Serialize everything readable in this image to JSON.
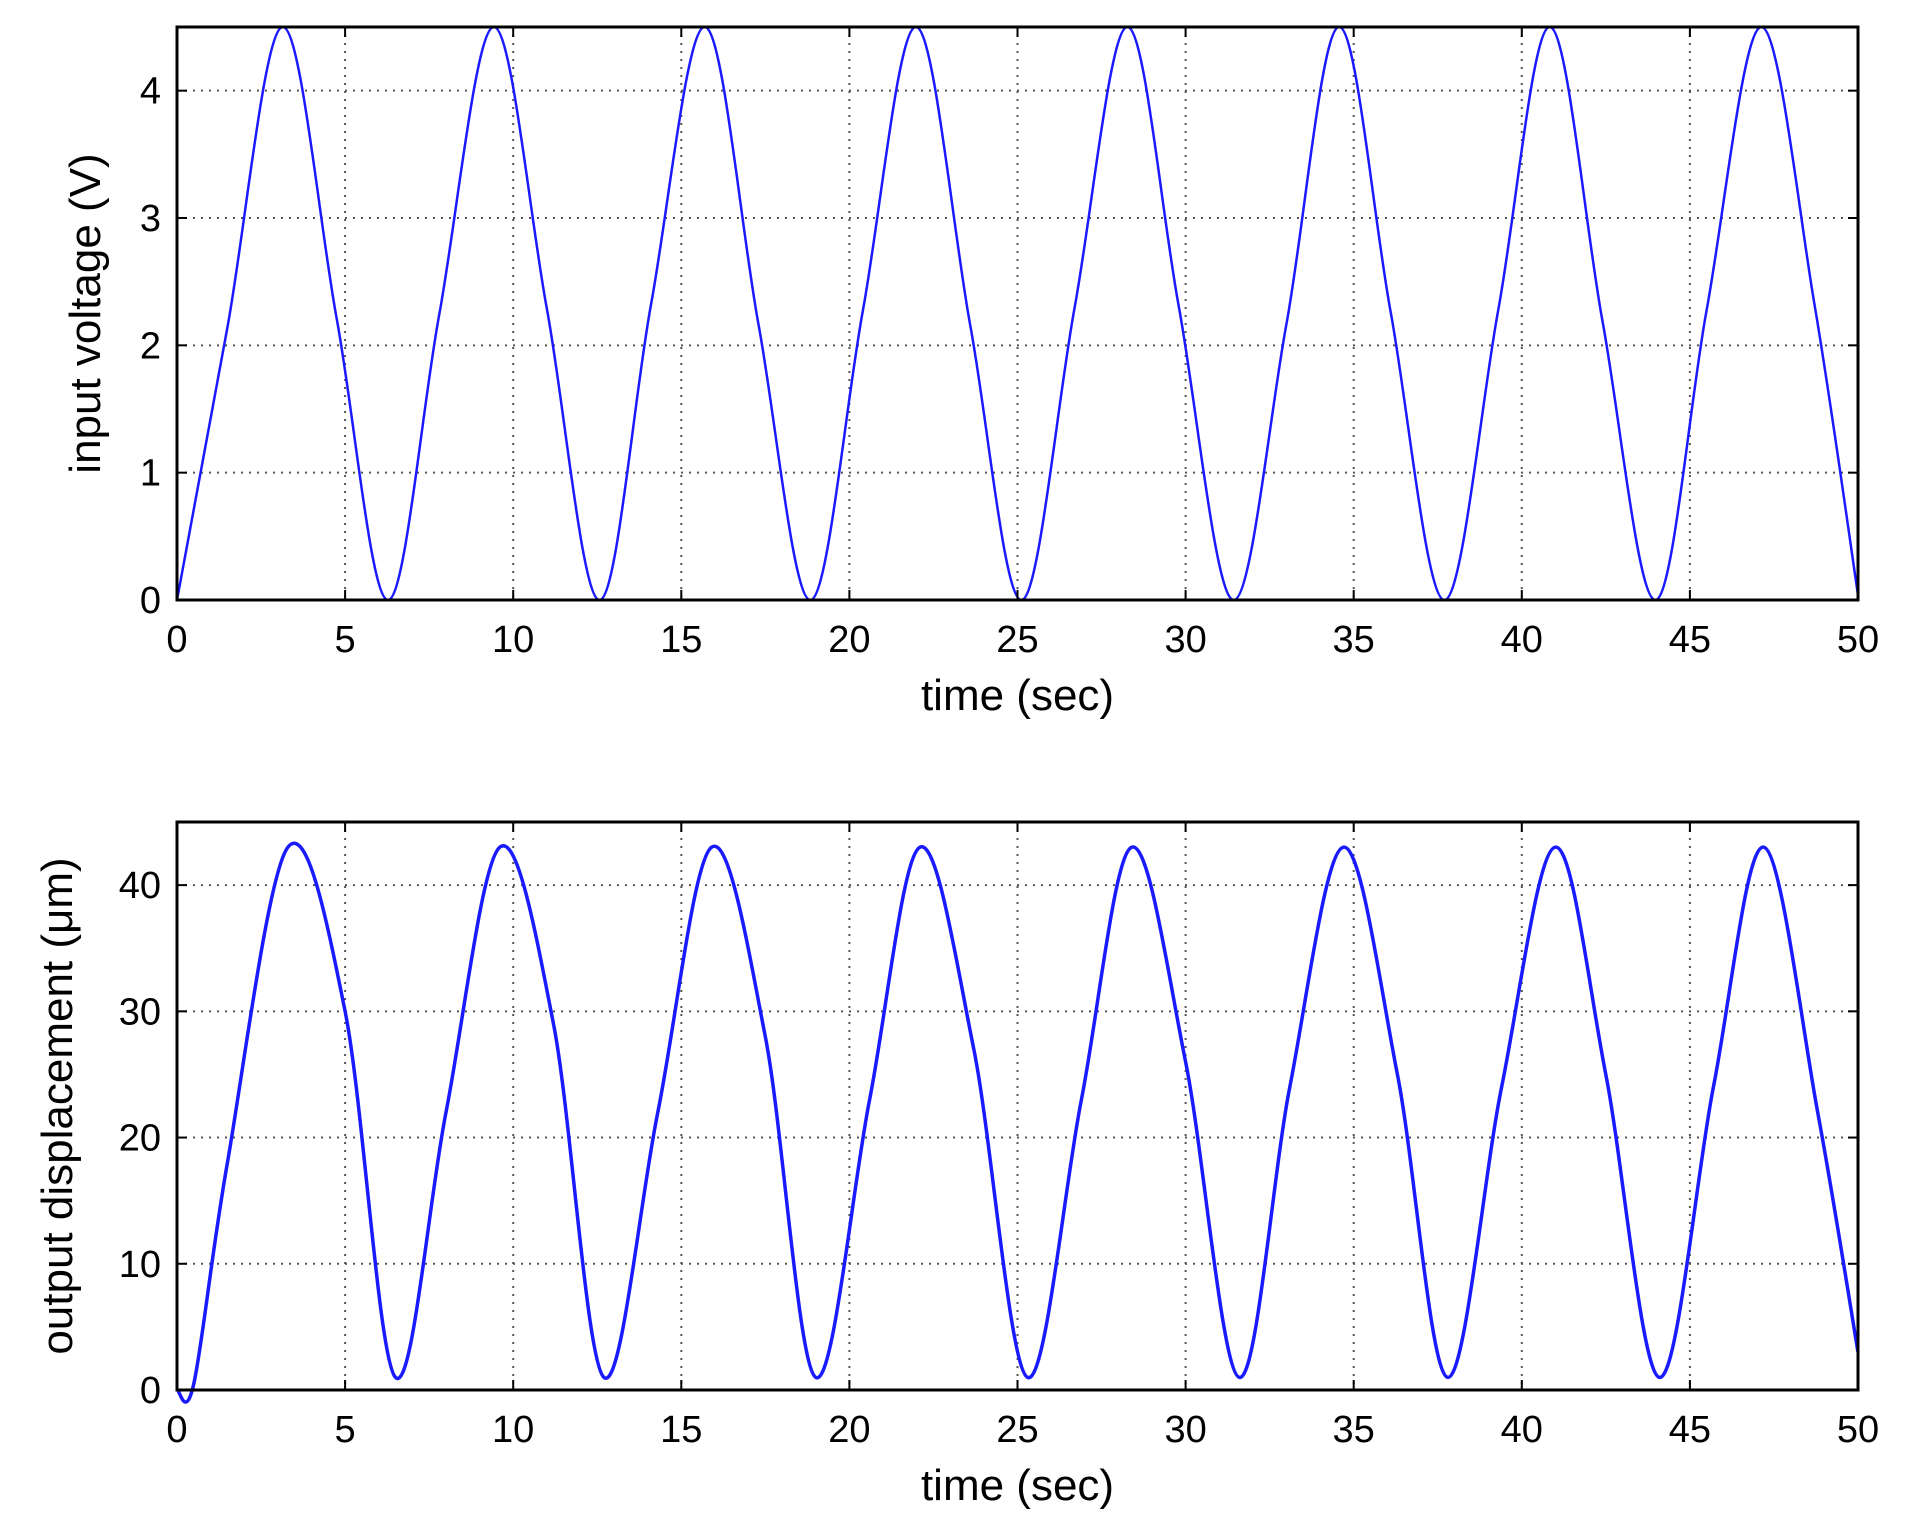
{
  "chart_data": [
    {
      "type": "line",
      "xlabel": "time (sec)",
      "ylabel": "input voltage (V)",
      "xlim": [
        0,
        50
      ],
      "ylim": [
        0,
        4.5
      ],
      "xticks": [
        0,
        5,
        10,
        15,
        20,
        25,
        30,
        35,
        40,
        45,
        50
      ],
      "yticks": [
        0,
        1,
        2,
        3,
        4
      ],
      "grid": true,
      "series": [
        {
          "color": "#1a1aff",
          "x": [
            0,
            1.5,
            3.14,
            4.75,
            6.28,
            7.8,
            9.42,
            11.0,
            12.57,
            14.1,
            15.71,
            17.3,
            18.85,
            20.4,
            21.99,
            23.6,
            25.13,
            26.7,
            28.27,
            29.8,
            31.42,
            33.0,
            34.56,
            36.1,
            37.7,
            39.3,
            40.84,
            42.4,
            43.98,
            45.5,
            47.12,
            48.7,
            50.0
          ],
          "y": [
            0,
            2.14,
            4.5,
            2.21,
            0,
            2.24,
            4.5,
            2.29,
            0,
            2.32,
            4.5,
            2.16,
            0,
            2.27,
            4.5,
            2.15,
            0,
            2.3,
            4.5,
            2.3,
            0,
            2.17,
            4.5,
            2.26,
            0,
            2.28,
            4.5,
            2.19,
            0,
            2.28,
            4.5,
            2.33,
            0.04
          ]
        }
      ]
    },
    {
      "type": "line",
      "xlabel": "time (sec)",
      "ylabel": "output displacement (μm)",
      "xlim": [
        0,
        50
      ],
      "ylim": [
        0,
        45
      ],
      "xticks": [
        0,
        5,
        10,
        15,
        20,
        25,
        30,
        35,
        40,
        45,
        50
      ],
      "yticks": [
        0,
        10,
        20,
        30,
        40
      ],
      "grid": true,
      "series": [
        {
          "color": "#1a1aff",
          "x": [
            0,
            0.5,
            1.5,
            3.3,
            5.0,
            6.5,
            8.0,
            9.6,
            11.2,
            12.7,
            14.3,
            15.9,
            17.5,
            19.0,
            20.6,
            22.1,
            23.7,
            25.3,
            26.9,
            28.4,
            30.0,
            31.6,
            33.1,
            34.7,
            36.3,
            37.8,
            39.4,
            41.0,
            42.5,
            44.1,
            45.7,
            47.2,
            48.8,
            50.0
          ],
          "y": [
            0,
            0.5,
            18,
            43,
            30,
            1,
            22,
            43,
            29,
            1,
            22,
            43,
            28,
            1,
            23,
            43,
            27,
            1,
            23,
            43,
            26,
            1,
            24,
            43,
            25,
            1,
            24,
            43,
            25,
            1,
            24,
            43,
            22,
            3
          ]
        }
      ]
    }
  ]
}
